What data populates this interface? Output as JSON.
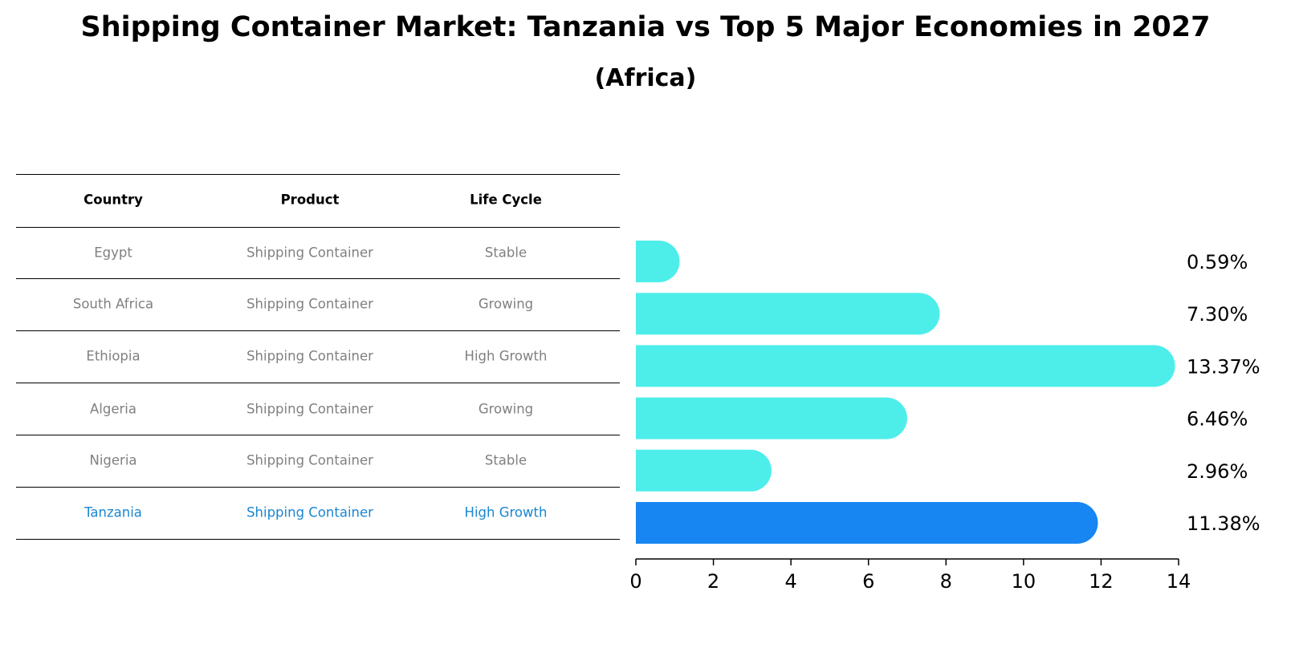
{
  "title": "Shipping Container Market: Tanzania vs Top 5 Major Economies in 2027",
  "subtitle": "(Africa)",
  "table": {
    "headers": [
      "Country",
      "Product",
      "Life Cycle"
    ],
    "rows": [
      {
        "country": "Egypt",
        "product": "Shipping Container",
        "life_cycle": "Stable",
        "highlight": false
      },
      {
        "country": "South Africa",
        "product": "Shipping Container",
        "life_cycle": "Growing",
        "highlight": false
      },
      {
        "country": "Ethiopia",
        "product": "Shipping Container",
        "life_cycle": "High Growth",
        "highlight": false
      },
      {
        "country": "Algeria",
        "product": "Shipping Container",
        "life_cycle": "Growing",
        "highlight": false
      },
      {
        "country": "Nigeria",
        "product": "Shipping Container",
        "life_cycle": "Stable",
        "highlight": false
      },
      {
        "country": "Tanzania",
        "product": "Shipping Container",
        "life_cycle": "High Growth",
        "highlight": true
      }
    ]
  },
  "colors": {
    "bar": "#4deeea",
    "highlight_bar": "#1785f2",
    "highlight_text": "#1a86d1",
    "muted_text": "#808080"
  },
  "chart_data": {
    "type": "bar",
    "orientation": "horizontal",
    "categories": [
      "Egypt",
      "South Africa",
      "Ethiopia",
      "Algeria",
      "Nigeria",
      "Tanzania"
    ],
    "values": [
      0.59,
      7.3,
      13.37,
      6.46,
      2.96,
      11.38
    ],
    "value_labels": [
      "0.59%",
      "7.30%",
      "13.37%",
      "6.46%",
      "2.96%",
      "11.38%"
    ],
    "highlight_category": "Tanzania",
    "xlim": [
      0,
      14
    ],
    "xticks": [
      0,
      2,
      4,
      6,
      8,
      10,
      12,
      14
    ],
    "grid": false
  }
}
